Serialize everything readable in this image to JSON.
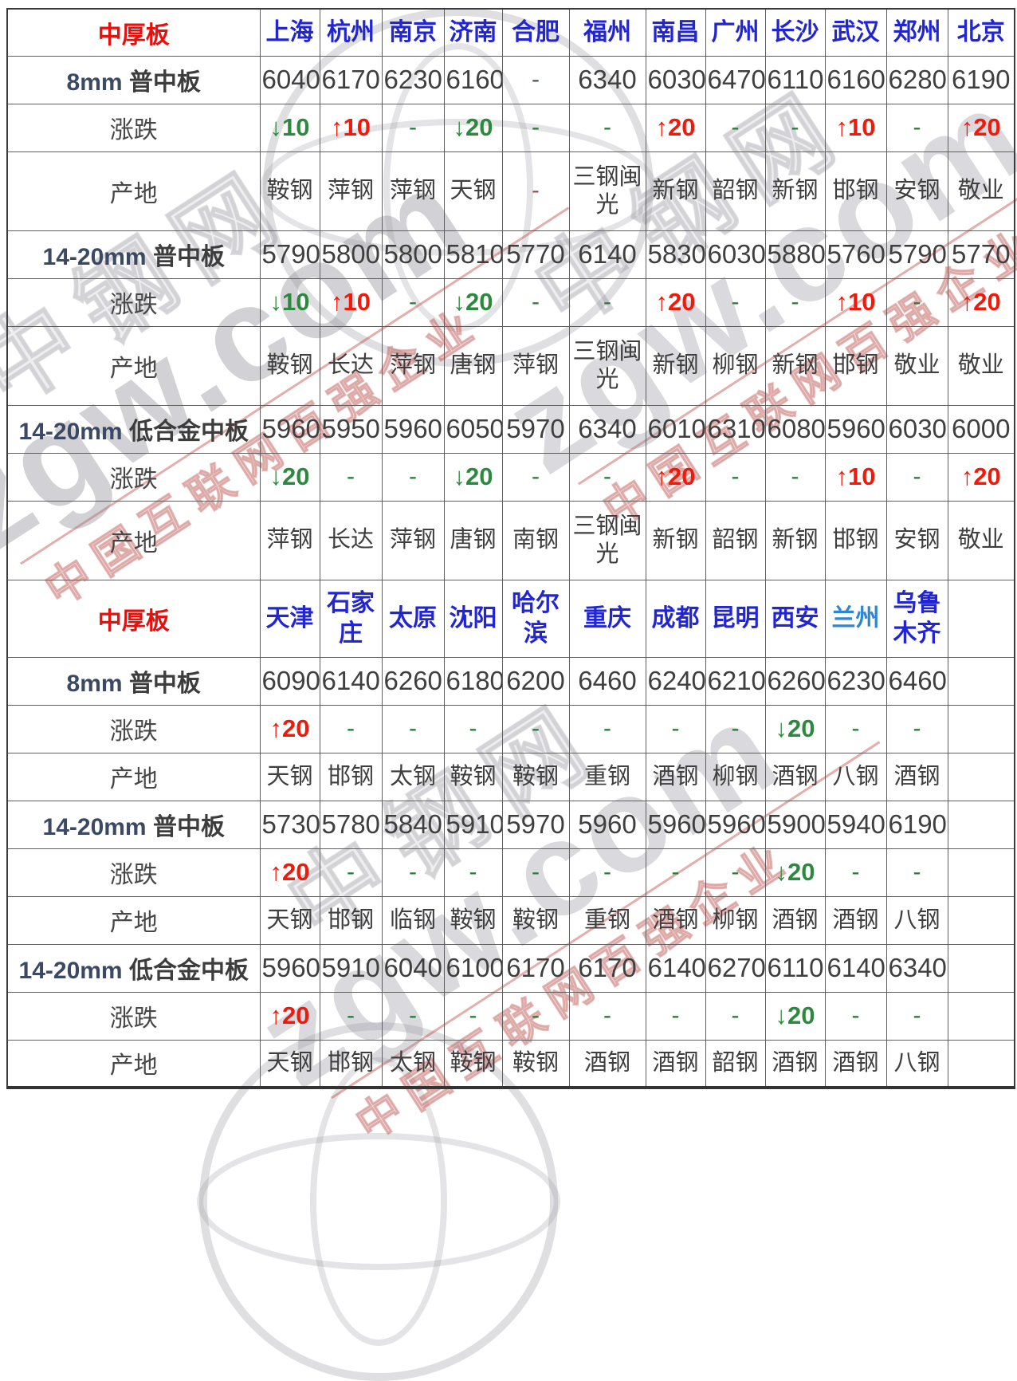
{
  "watermark": {
    "brand": "zgw.com",
    "site": "中钢网",
    "tagline": "中国互联网百强企业"
  },
  "row_labels": {
    "change": "涨跌",
    "origin": "产地"
  },
  "sections": [
    {
      "title": "中厚板",
      "cities": [
        "上海",
        "杭州",
        "南京",
        "济南",
        "合肥",
        "福州",
        "南昌",
        "广州",
        "长沙",
        "武汉",
        "郑州",
        "北京"
      ],
      "light_cities": [],
      "products": [
        {
          "spec": "8mm",
          "name": "普中板",
          "prices": [
            "6040",
            "6170",
            "6230",
            "6160",
            "-",
            "6340",
            "6030",
            "6470",
            "6110",
            "6160",
            "6280",
            "6190"
          ],
          "changes": [
            "↓10",
            "↑10",
            "-",
            "↓20",
            "-",
            "-",
            "↑20",
            "-",
            "-",
            "↑10",
            "-",
            "↑20"
          ],
          "origins": [
            "鞍钢",
            "萍钢",
            "萍钢",
            "天钢",
            "-",
            "三钢闽光",
            "新钢",
            "韶钢",
            "新钢",
            "邯钢",
            "安钢",
            "敬业"
          ]
        },
        {
          "spec": "14-20mm",
          "name": "普中板",
          "prices": [
            "5790",
            "5800",
            "5800",
            "5810",
            "5770",
            "6140",
            "5830",
            "6030",
            "5880",
            "5760",
            "5790",
            "5770"
          ],
          "changes": [
            "↓10",
            "↑10",
            "-",
            "↓20",
            "-",
            "-",
            "↑20",
            "-",
            "-",
            "↑10",
            "-",
            "↑20"
          ],
          "origins": [
            "鞍钢",
            "长达",
            "萍钢",
            "唐钢",
            "萍钢",
            "三钢闽光",
            "新钢",
            "柳钢",
            "新钢",
            "邯钢",
            "敬业",
            "敬业"
          ]
        },
        {
          "spec": "14-20mm",
          "name": "低合金中板",
          "prices": [
            "5960",
            "5950",
            "5960",
            "6050",
            "5970",
            "6340",
            "6010",
            "6310",
            "6080",
            "5960",
            "6030",
            "6000"
          ],
          "changes": [
            "↓20",
            "-",
            "-",
            "↓20",
            "-",
            "-",
            "↑20",
            "-",
            "-",
            "↑10",
            "-",
            "↑20"
          ],
          "origins": [
            "萍钢",
            "长达",
            "萍钢",
            "唐钢",
            "南钢",
            "三钢闽光",
            "新钢",
            "韶钢",
            "新钢",
            "邯钢",
            "安钢",
            "敬业"
          ]
        }
      ]
    },
    {
      "title": "中厚板",
      "cities": [
        "天津",
        "石家庄",
        "太原",
        "沈阳",
        "哈尔滨",
        "重庆",
        "成都",
        "昆明",
        "西安",
        "兰州",
        "乌鲁木齐",
        ""
      ],
      "light_cities": [
        "兰州"
      ],
      "products": [
        {
          "spec": "8mm",
          "name": "普中板",
          "prices": [
            "6090",
            "6140",
            "6260",
            "6180",
            "6200",
            "6460",
            "6240",
            "6210",
            "6260",
            "6230",
            "6460",
            ""
          ],
          "changes": [
            "↑20",
            "-",
            "-",
            "-",
            "-",
            "-",
            "-",
            "-",
            "↓20",
            "-",
            "-",
            ""
          ],
          "origins": [
            "天钢",
            "邯钢",
            "太钢",
            "鞍钢",
            "鞍钢",
            "重钢",
            "酒钢",
            "柳钢",
            "酒钢",
            "八钢",
            "酒钢",
            ""
          ]
        },
        {
          "spec": "14-20mm",
          "name": "普中板",
          "prices": [
            "5730",
            "5780",
            "5840",
            "5910",
            "5970",
            "5960",
            "5960",
            "5960",
            "5900",
            "5940",
            "6190",
            ""
          ],
          "changes": [
            "↑20",
            "-",
            "-",
            "-",
            "-",
            "-",
            "-",
            "-",
            "↓20",
            "-",
            "-",
            ""
          ],
          "origins": [
            "天钢",
            "邯钢",
            "临钢",
            "鞍钢",
            "鞍钢",
            "重钢",
            "酒钢",
            "柳钢",
            "酒钢",
            "酒钢",
            "八钢",
            ""
          ]
        },
        {
          "spec": "14-20mm",
          "name": "低合金中板",
          "prices": [
            "5960",
            "5910",
            "6040",
            "6100",
            "6170",
            "6170",
            "6140",
            "6270",
            "6110",
            "6140",
            "6340",
            ""
          ],
          "changes": [
            "↑20",
            "-",
            "-",
            "-",
            "-",
            "-",
            "-",
            "-",
            "↓20",
            "-",
            "-",
            ""
          ],
          "origins": [
            "天钢",
            "邯钢",
            "太钢",
            "鞍钢",
            "鞍钢",
            "酒钢",
            "酒钢",
            "韶钢",
            "酒钢",
            "酒钢",
            "八钢",
            ""
          ]
        }
      ]
    }
  ]
}
